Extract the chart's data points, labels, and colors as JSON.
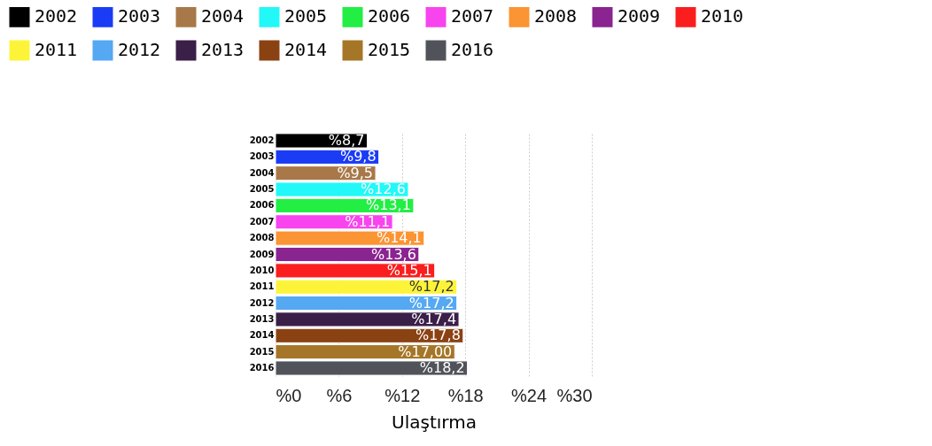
{
  "chart_data": {
    "type": "bar",
    "orientation": "horizontal",
    "xlabel": "Ulaştırma",
    "categories": [
      "2002",
      "2003",
      "2004",
      "2005",
      "2006",
      "2007",
      "2008",
      "2009",
      "2010",
      "2011",
      "2012",
      "2013",
      "2014",
      "2015",
      "2016"
    ],
    "series": [
      {
        "name": "2002",
        "color": "#000000",
        "values": [
          8.7,
          null,
          null,
          null,
          null,
          null,
          null,
          null,
          null,
          null,
          null,
          null,
          null,
          null,
          null
        ],
        "value_labels": [
          "%8,7",
          null,
          null,
          null,
          null,
          null,
          null,
          null,
          null,
          null,
          null,
          null,
          null,
          null,
          null
        ]
      },
      {
        "name": "2003",
        "color": "#1a3cf5",
        "values": [
          null,
          9.8,
          null,
          null,
          null,
          null,
          null,
          null,
          null,
          null,
          null,
          null,
          null,
          null,
          null
        ],
        "value_labels": [
          null,
          "%9,8",
          null,
          null,
          null,
          null,
          null,
          null,
          null,
          null,
          null,
          null,
          null,
          null,
          null
        ]
      },
      {
        "name": "2004",
        "color": "#a87848",
        "values": [
          null,
          null,
          9.5,
          null,
          null,
          null,
          null,
          null,
          null,
          null,
          null,
          null,
          null,
          null,
          null
        ],
        "value_labels": [
          null,
          null,
          "%9,5",
          null,
          null,
          null,
          null,
          null,
          null,
          null,
          null,
          null,
          null,
          null,
          null
        ]
      },
      {
        "name": "2005",
        "color": "#22f8f8",
        "values": [
          null,
          null,
          null,
          12.6,
          null,
          null,
          null,
          null,
          null,
          null,
          null,
          null,
          null,
          null,
          null
        ],
        "value_labels": [
          null,
          null,
          null,
          "%12,6",
          null,
          null,
          null,
          null,
          null,
          null,
          null,
          null,
          null,
          null,
          null
        ]
      },
      {
        "name": "2006",
        "color": "#22ee44",
        "values": [
          null,
          null,
          null,
          null,
          13.1,
          null,
          null,
          null,
          null,
          null,
          null,
          null,
          null,
          null,
          null
        ],
        "value_labels": [
          null,
          null,
          null,
          null,
          "%13,1",
          null,
          null,
          null,
          null,
          null,
          null,
          null,
          null,
          null,
          null
        ]
      },
      {
        "name": "2007",
        "color": "#f844ee",
        "values": [
          null,
          null,
          null,
          null,
          null,
          11.1,
          null,
          null,
          null,
          null,
          null,
          null,
          null,
          null,
          null
        ],
        "value_labels": [
          null,
          null,
          null,
          null,
          null,
          "%11,1",
          null,
          null,
          null,
          null,
          null,
          null,
          null,
          null,
          null
        ]
      },
      {
        "name": "2008",
        "color": "#fb9433",
        "values": [
          null,
          null,
          null,
          null,
          null,
          null,
          14.1,
          null,
          null,
          null,
          null,
          null,
          null,
          null,
          null
        ],
        "value_labels": [
          null,
          null,
          null,
          null,
          null,
          null,
          "%14,1",
          null,
          null,
          null,
          null,
          null,
          null,
          null,
          null
        ]
      },
      {
        "name": "2009",
        "color": "#8a2490",
        "values": [
          null,
          null,
          null,
          null,
          null,
          null,
          null,
          13.6,
          null,
          null,
          null,
          null,
          null,
          null,
          null
        ],
        "value_labels": [
          null,
          null,
          null,
          null,
          null,
          null,
          null,
          "%13,6",
          null,
          null,
          null,
          null,
          null,
          null,
          null
        ]
      },
      {
        "name": "2010",
        "color": "#fa1e1e",
        "values": [
          null,
          null,
          null,
          null,
          null,
          null,
          null,
          null,
          15.1,
          null,
          null,
          null,
          null,
          null,
          null
        ],
        "value_labels": [
          null,
          null,
          null,
          null,
          null,
          null,
          null,
          null,
          "%15,1",
          null,
          null,
          null,
          null,
          null,
          null
        ]
      },
      {
        "name": "2011",
        "color": "#fdf43a",
        "values": [
          null,
          null,
          null,
          null,
          null,
          null,
          null,
          null,
          null,
          17.2,
          null,
          null,
          null,
          null,
          null
        ],
        "value_labels": [
          null,
          null,
          null,
          null,
          null,
          null,
          null,
          null,
          null,
          "%17,2",
          null,
          null,
          null,
          null,
          null
        ]
      },
      {
        "name": "2012",
        "color": "#55a8f2",
        "values": [
          null,
          null,
          null,
          null,
          null,
          null,
          null,
          null,
          null,
          null,
          17.2,
          null,
          null,
          null,
          null
        ],
        "value_labels": [
          null,
          null,
          null,
          null,
          null,
          null,
          null,
          null,
          null,
          null,
          "%17,2",
          null,
          null,
          null,
          null
        ]
      },
      {
        "name": "2013",
        "color": "#3a1f48",
        "values": [
          null,
          null,
          null,
          null,
          null,
          null,
          null,
          null,
          null,
          null,
          null,
          17.4,
          null,
          null,
          null
        ],
        "value_labels": [
          null,
          null,
          null,
          null,
          null,
          null,
          null,
          null,
          null,
          null,
          null,
          "%17,4",
          null,
          null,
          null
        ]
      },
      {
        "name": "2014",
        "color": "#8b4213",
        "values": [
          null,
          null,
          null,
          null,
          null,
          null,
          null,
          null,
          null,
          null,
          null,
          null,
          17.8,
          null,
          null
        ],
        "value_labels": [
          null,
          null,
          null,
          null,
          null,
          null,
          null,
          null,
          null,
          null,
          null,
          null,
          "%17,8",
          null,
          null
        ]
      },
      {
        "name": "2015",
        "color": "#a57628",
        "values": [
          null,
          null,
          null,
          null,
          null,
          null,
          null,
          null,
          null,
          null,
          null,
          null,
          null,
          17.0,
          null
        ],
        "value_labels": [
          null,
          null,
          null,
          null,
          null,
          null,
          null,
          null,
          null,
          null,
          null,
          null,
          null,
          "%17,00",
          null
        ]
      },
      {
        "name": "2016",
        "color": "#50545a",
        "values": [
          null,
          null,
          null,
          null,
          null,
          null,
          null,
          null,
          null,
          null,
          null,
          null,
          null,
          null,
          18.2
        ],
        "value_labels": [
          null,
          null,
          null,
          null,
          null,
          null,
          null,
          null,
          null,
          null,
          null,
          null,
          null,
          null,
          "%18,2"
        ]
      }
    ],
    "xlim": [
      0,
      30
    ],
    "xticks": [
      {
        "value": 0,
        "label": "%0"
      },
      {
        "value": 6,
        "label": "%6"
      },
      {
        "value": 12,
        "label": "%12"
      },
      {
        "value": 18,
        "label": "%18"
      },
      {
        "value": 24,
        "label": "%24"
      },
      {
        "value": 30,
        "label": "%30"
      }
    ],
    "grid": "x",
    "legend": "top"
  }
}
